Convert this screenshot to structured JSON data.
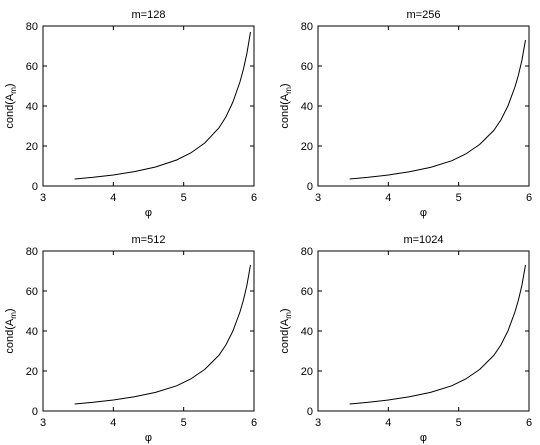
{
  "chart_data": [
    {
      "type": "line",
      "title": "m=128",
      "xlabel": "φ",
      "ylabel": "cond(A_m)",
      "xlim": [
        3,
        6
      ],
      "ylim": [
        0,
        80
      ],
      "xticks": [
        3,
        4,
        5,
        6
      ],
      "yticks": [
        0,
        20,
        40,
        60,
        80
      ],
      "grid": false,
      "series": [
        {
          "x": [
            3.45,
            3.7,
            4.0,
            4.3,
            4.6,
            4.9,
            5.1,
            5.3,
            5.5,
            5.6,
            5.7,
            5.8,
            5.85,
            5.9,
            5.95
          ],
          "y": [
            3.5,
            4.3,
            5.5,
            7.2,
            9.5,
            13.0,
            16.5,
            21.5,
            29.0,
            34.5,
            42.0,
            52.0,
            58.5,
            66.5,
            77.0
          ]
        }
      ]
    },
    {
      "type": "line",
      "title": "m=256",
      "xlabel": "φ",
      "ylabel": "cond(A_m)",
      "xlim": [
        3,
        6
      ],
      "ylim": [
        0,
        80
      ],
      "xticks": [
        3,
        4,
        5,
        6
      ],
      "yticks": [
        0,
        20,
        40,
        60,
        80
      ],
      "grid": false,
      "series": [
        {
          "x": [
            3.45,
            3.7,
            4.0,
            4.3,
            4.6,
            4.9,
            5.1,
            5.3,
            5.5,
            5.6,
            5.7,
            5.8,
            5.85,
            5.9,
            5.95
          ],
          "y": [
            3.5,
            4.3,
            5.5,
            7.1,
            9.3,
            12.6,
            16.0,
            20.8,
            27.8,
            33.0,
            40.0,
            49.5,
            55.5,
            63.0,
            73.0
          ]
        }
      ]
    },
    {
      "type": "line",
      "title": "m=512",
      "xlabel": "φ",
      "ylabel": "cond(A_m)",
      "xlim": [
        3,
        6
      ],
      "ylim": [
        0,
        80
      ],
      "xticks": [
        3,
        4,
        5,
        6
      ],
      "yticks": [
        0,
        20,
        40,
        60,
        80
      ],
      "grid": false,
      "series": [
        {
          "x": [
            3.45,
            3.7,
            4.0,
            4.3,
            4.6,
            4.9,
            5.1,
            5.3,
            5.5,
            5.6,
            5.7,
            5.8,
            5.85,
            5.9,
            5.95
          ],
          "y": [
            3.5,
            4.3,
            5.5,
            7.1,
            9.3,
            12.6,
            16.0,
            20.8,
            27.8,
            33.0,
            40.0,
            49.5,
            55.5,
            63.0,
            73.0
          ]
        }
      ]
    },
    {
      "type": "line",
      "title": "m=1024",
      "xlabel": "φ",
      "ylabel": "cond(A_m)",
      "xlim": [
        3,
        6
      ],
      "ylim": [
        0,
        80
      ],
      "xticks": [
        3,
        4,
        5,
        6
      ],
      "yticks": [
        0,
        20,
        40,
        60,
        80
      ],
      "grid": false,
      "series": [
        {
          "x": [
            3.45,
            3.7,
            4.0,
            4.3,
            4.6,
            4.9,
            5.1,
            5.3,
            5.5,
            5.6,
            5.7,
            5.8,
            5.85,
            5.9,
            5.95
          ],
          "y": [
            3.5,
            4.3,
            5.5,
            7.1,
            9.3,
            12.6,
            16.0,
            20.8,
            27.8,
            33.0,
            40.0,
            49.5,
            55.5,
            63.0,
            73.0
          ]
        }
      ]
    }
  ]
}
